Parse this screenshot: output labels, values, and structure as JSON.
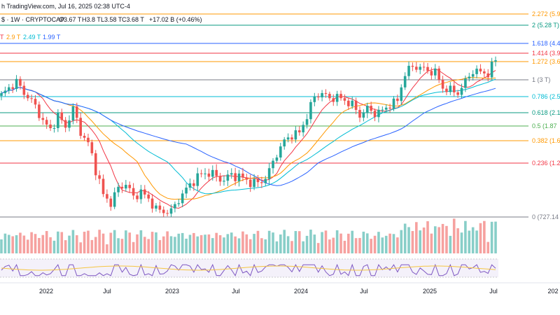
{
  "header": {
    "published": "h TradingView.com, Jul 16, 2025 02:38 UTC-4",
    "symbol_prefix": "$ · 1W · CRYPTOCAP",
    "open": "O3.67 T",
    "high": "H3.8 T",
    "low": "L3.58 T",
    "close": "C3.68 T",
    "change": "+17.02 B (+0.46%)",
    "ma_values": [
      {
        "text": "T",
        "color": "#f23645"
      },
      {
        "text": "2.9 T",
        "color": "#ff9800"
      },
      {
        "text": "2.49 T",
        "color": "#00bcd4"
      },
      {
        "text": "1.99 T",
        "color": "#2962ff"
      }
    ]
  },
  "chart_data": {
    "type": "candlestick",
    "title": "",
    "timeframe": "1W",
    "units": "T",
    "x_tick_labels": [
      "2022",
      "Jul",
      "2023",
      "Jul",
      "2024",
      "Jul",
      "2025",
      "Jul",
      "202"
    ],
    "fib_levels": [
      {
        "label": "2.272 (5.9",
        "value": 5.9,
        "color": "#ff9800"
      },
      {
        "label": "2 (5.28 T)",
        "value": 5.28,
        "color": "#089981"
      },
      {
        "label": "1.618 (4.4",
        "value": 4.4,
        "color": "#2962ff"
      },
      {
        "label": "1.414 (3.9",
        "value": 3.9,
        "color": "#f23645"
      },
      {
        "label": "1.272 (3.6",
        "value": 3.6,
        "color": "#ff9800"
      },
      {
        "label": "1 (3 T)",
        "value": 3.0,
        "color": "#787b86"
      },
      {
        "label": "0.786 (2.5",
        "value": 2.5,
        "color": "#00bcd4"
      },
      {
        "label": "0.618 (2.1",
        "value": 2.1,
        "color": "#089981"
      },
      {
        "label": "0.5 (1.87",
        "value": 1.87,
        "color": "#4caf50"
      },
      {
        "label": "0.382 (1.6",
        "value": 1.6,
        "color": "#ff9800"
      },
      {
        "label": "0.236 (1.2",
        "value": 1.2,
        "color": "#f23645"
      },
      {
        "label": "0 (727.14",
        "value": 0.727,
        "color": "#787b86"
      }
    ],
    "colors": {
      "up": "#26a69a",
      "down": "#ef5350",
      "ma_fast": "#f23645",
      "ma_mid": "#ff9800",
      "ma_slow": "#00bcd4",
      "ma_long": "#2962ff",
      "rsi": "#7e57c2",
      "rsi_ma": "#f5c542"
    },
    "ohlc_anchors": [
      {
        "x": 0,
        "close": 2.55
      },
      {
        "x": 2,
        "close": 2.75
      },
      {
        "x": 4,
        "close": 2.95
      },
      {
        "x": 6,
        "close": 2.6
      },
      {
        "x": 8,
        "close": 2.4
      },
      {
        "x": 11,
        "close": 1.95
      },
      {
        "x": 13,
        "close": 1.8
      },
      {
        "x": 15,
        "close": 2.05
      },
      {
        "x": 17,
        "close": 1.85
      },
      {
        "x": 19,
        "close": 2.2
      },
      {
        "x": 21,
        "close": 1.75
      },
      {
        "x": 23,
        "close": 1.55
      },
      {
        "x": 25,
        "close": 1.15
      },
      {
        "x": 27,
        "close": 0.92
      },
      {
        "x": 29,
        "close": 0.85
      },
      {
        "x": 31,
        "close": 0.98
      },
      {
        "x": 33,
        "close": 1.02
      },
      {
        "x": 35,
        "close": 0.9
      },
      {
        "x": 37,
        "close": 0.95
      },
      {
        "x": 39,
        "close": 0.88
      },
      {
        "x": 41,
        "close": 0.8
      },
      {
        "x": 43,
        "close": 0.77
      },
      {
        "x": 45,
        "close": 0.78
      },
      {
        "x": 47,
        "close": 0.88
      },
      {
        "x": 49,
        "close": 0.97
      },
      {
        "x": 51,
        "close": 1.05
      },
      {
        "x": 53,
        "close": 1.1
      },
      {
        "x": 55,
        "close": 1.12
      },
      {
        "x": 57,
        "close": 1.08
      },
      {
        "x": 59,
        "close": 1.05
      },
      {
        "x": 61,
        "close": 1.1
      },
      {
        "x": 63,
        "close": 1.08
      },
      {
        "x": 65,
        "close": 1.05
      },
      {
        "x": 67,
        "close": 1.02
      },
      {
        "x": 69,
        "close": 1.04
      },
      {
        "x": 71,
        "close": 1.12
      },
      {
        "x": 73,
        "close": 1.35
      },
      {
        "x": 75,
        "close": 1.6
      },
      {
        "x": 77,
        "close": 1.7
      },
      {
        "x": 79,
        "close": 1.75
      },
      {
        "x": 81,
        "close": 2.05
      },
      {
        "x": 83,
        "close": 2.5
      },
      {
        "x": 85,
        "close": 2.6
      },
      {
        "x": 87,
        "close": 2.45
      },
      {
        "x": 89,
        "close": 2.5
      },
      {
        "x": 91,
        "close": 2.4
      },
      {
        "x": 93,
        "close": 2.3
      },
      {
        "x": 95,
        "close": 2.05
      },
      {
        "x": 97,
        "close": 2.2
      },
      {
        "x": 99,
        "close": 2.1
      },
      {
        "x": 101,
        "close": 2.15
      },
      {
        "x": 103,
        "close": 2.3
      },
      {
        "x": 105,
        "close": 2.4
      },
      {
        "x": 107,
        "close": 3.2
      },
      {
        "x": 109,
        "close": 3.45
      },
      {
        "x": 111,
        "close": 3.4
      },
      {
        "x": 113,
        "close": 3.3
      },
      {
        "x": 115,
        "close": 3.25
      },
      {
        "x": 117,
        "close": 2.75
      },
      {
        "x": 119,
        "close": 2.7
      },
      {
        "x": 121,
        "close": 2.6
      },
      {
        "x": 123,
        "close": 2.95
      },
      {
        "x": 125,
        "close": 3.3
      },
      {
        "x": 127,
        "close": 3.25
      },
      {
        "x": 129,
        "close": 3.2
      },
      {
        "x": 131,
        "close": 3.68
      }
    ]
  }
}
